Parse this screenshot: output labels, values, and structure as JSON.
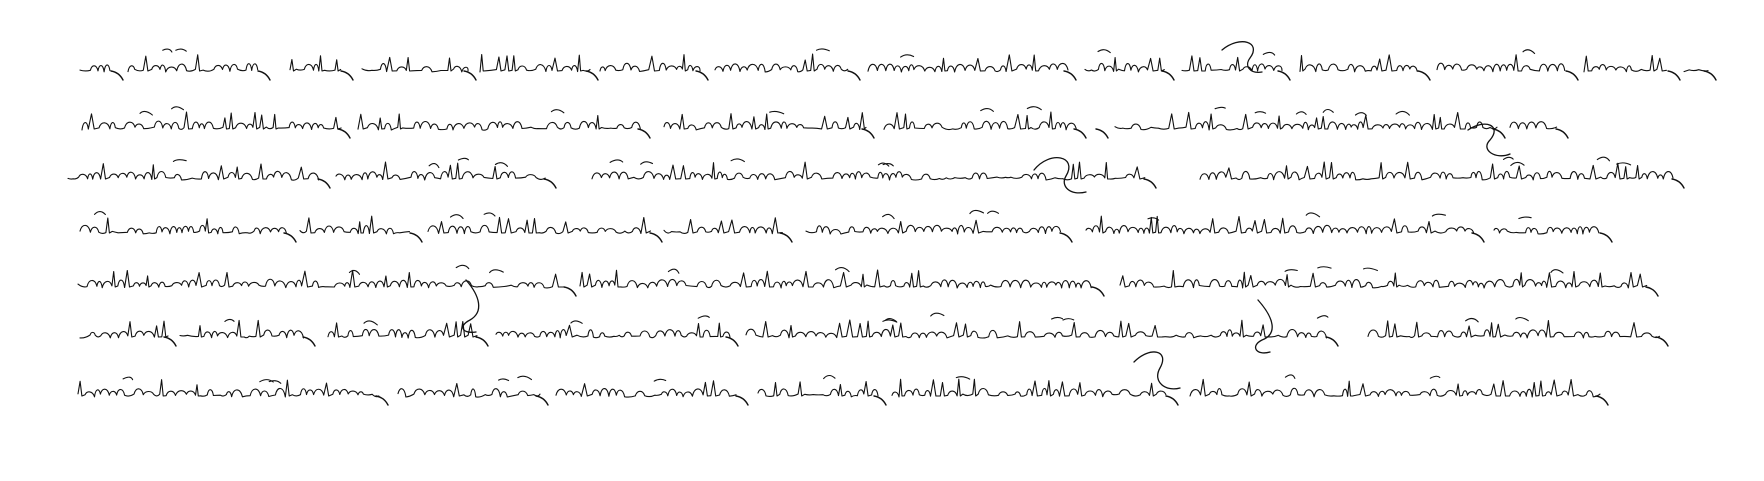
{
  "document": {
    "kind": "handwritten cursive script manuscript",
    "script_style": "Tibetan cursive (khyug-yig) style, black ink on white",
    "line_count": 7,
    "ink_color": "#111111",
    "background_color": "#ffffff"
  },
  "lines": [
    {
      "id": "line-1",
      "segments": 14
    },
    {
      "id": "line-2",
      "segments": 8
    },
    {
      "id": "line-3",
      "segments": 6
    },
    {
      "id": "line-4",
      "segments": 7
    },
    {
      "id": "line-5",
      "segments": 4
    },
    {
      "id": "line-6",
      "segments": 6
    },
    {
      "id": "line-7",
      "segments": 6
    }
  ]
}
